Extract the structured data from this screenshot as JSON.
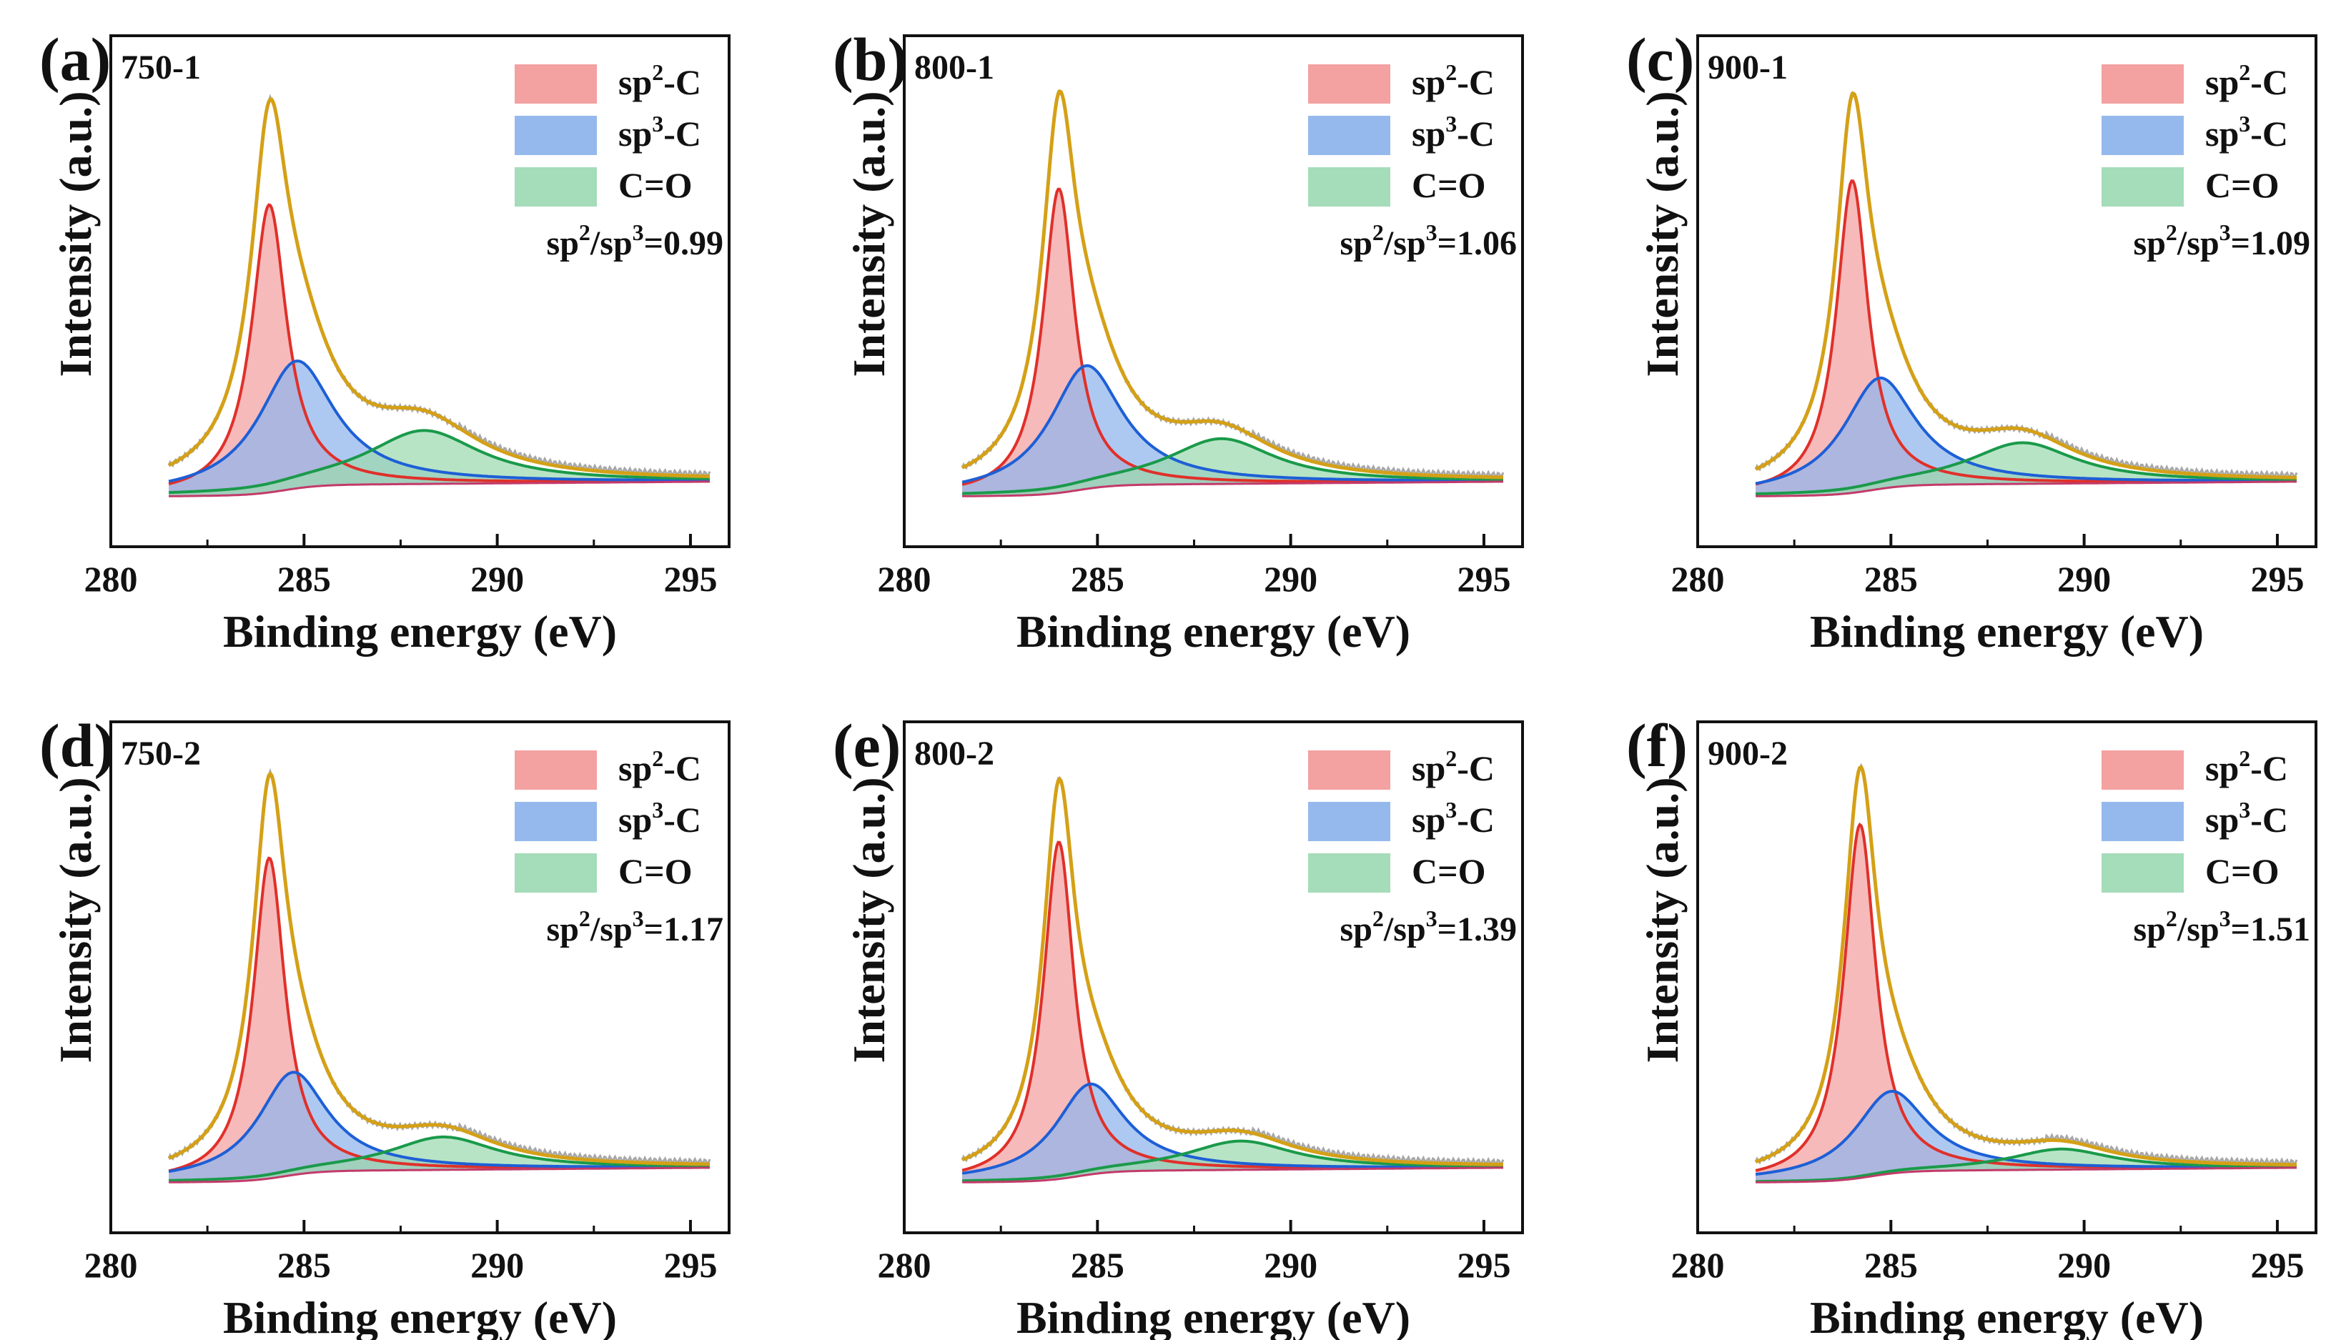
{
  "chart_data": [
    {
      "panel": "(a)",
      "sample": "750-1",
      "type": "area",
      "xlabel": "Binding energy (eV)",
      "ylabel": "Intensity (a.u.)",
      "xlim": [
        280,
        296
      ],
      "xticks": [
        280,
        285,
        290,
        295
      ],
      "legend": [
        {
          "name": "sp2-C",
          "base": "sp",
          "sup": "2",
          "tail": "-C",
          "color": "#f08a8a"
        },
        {
          "name": "sp3-C",
          "base": "sp",
          "sup": "3",
          "tail": "-C",
          "color": "#7aa8e8"
        },
        {
          "name": "C=O",
          "base": "C=O",
          "sup": "",
          "tail": "",
          "color": "#8fd3a8"
        }
      ],
      "ratio": {
        "a": "sp",
        "s1": "2",
        "b": "/sp",
        "s2": "3",
        "c": "=0.99"
      },
      "peaks": [
        {
          "name": "sp2-C",
          "center": 284.1,
          "height": 0.7,
          "width": 0.55
        },
        {
          "name": "sp3-C",
          "center": 284.8,
          "height": 0.31,
          "width": 1.2
        },
        {
          "name": "C=O",
          "center": 288.1,
          "height": 0.13,
          "width": 1.8
        }
      ]
    },
    {
      "panel": "(b)",
      "sample": "800-1",
      "type": "area",
      "xlabel": "Binding energy (eV)",
      "ylabel": "Intensity (a.u.)",
      "xlim": [
        280,
        296
      ],
      "xticks": [
        280,
        285,
        290,
        295
      ],
      "legend": [
        {
          "name": "sp2-C",
          "base": "sp",
          "sup": "2",
          "tail": "-C",
          "color": "#f08a8a"
        },
        {
          "name": "sp3-C",
          "base": "sp",
          "sup": "3",
          "tail": "-C",
          "color": "#7aa8e8"
        },
        {
          "name": "C=O",
          "base": "C=O",
          "sup": "",
          "tail": "",
          "color": "#8fd3a8"
        }
      ],
      "ratio": {
        "a": "sp",
        "s1": "2",
        "b": "/sp",
        "s2": "3",
        "c": "=1.06"
      },
      "peaks": [
        {
          "name": "sp2-C",
          "center": 284.0,
          "height": 0.74,
          "width": 0.5
        },
        {
          "name": "sp3-C",
          "center": 284.7,
          "height": 0.3,
          "width": 1.15
        },
        {
          "name": "C=O",
          "center": 288.2,
          "height": 0.11,
          "width": 1.7
        }
      ]
    },
    {
      "panel": "(c)",
      "sample": "900-1",
      "type": "area",
      "xlabel": "Binding energy (eV)",
      "ylabel": "Intensity (a.u.)",
      "xlim": [
        280,
        296
      ],
      "xticks": [
        280,
        285,
        290,
        295
      ],
      "legend": [
        {
          "name": "sp2-C",
          "base": "sp",
          "sup": "2",
          "tail": "-C",
          "color": "#f08a8a"
        },
        {
          "name": "sp3-C",
          "base": "sp",
          "sup": "3",
          "tail": "-C",
          "color": "#7aa8e8"
        },
        {
          "name": "C=O",
          "base": "C=O",
          "sup": "",
          "tail": "",
          "color": "#8fd3a8"
        }
      ],
      "ratio": {
        "a": "sp",
        "s1": "2",
        "b": "/sp",
        "s2": "3",
        "c": "=1.09"
      },
      "peaks": [
        {
          "name": "sp2-C",
          "center": 284.0,
          "height": 0.76,
          "width": 0.5
        },
        {
          "name": "sp3-C",
          "center": 284.7,
          "height": 0.27,
          "width": 1.15
        },
        {
          "name": "C=O",
          "center": 288.4,
          "height": 0.1,
          "width": 1.7
        }
      ]
    },
    {
      "panel": "(d)",
      "sample": "750-2",
      "type": "area",
      "xlabel": "Binding energy (eV)",
      "ylabel": "Intensity (a.u.)",
      "xlim": [
        280,
        296
      ],
      "xticks": [
        280,
        285,
        290,
        295
      ],
      "legend": [
        {
          "name": "sp2-C",
          "base": "sp",
          "sup": "2",
          "tail": "-C",
          "color": "#f08a8a"
        },
        {
          "name": "sp3-C",
          "base": "sp",
          "sup": "3",
          "tail": "-C",
          "color": "#7aa8e8"
        },
        {
          "name": "C=O",
          "base": "C=O",
          "sup": "",
          "tail": "",
          "color": "#8fd3a8"
        }
      ],
      "ratio": {
        "a": "sp",
        "s1": "2",
        "b": "/sp",
        "s2": "3",
        "c": "=1.17"
      },
      "peaks": [
        {
          "name": "sp2-C",
          "center": 284.1,
          "height": 0.78,
          "width": 0.5
        },
        {
          "name": "sp3-C",
          "center": 284.7,
          "height": 0.25,
          "width": 1.1
        },
        {
          "name": "C=O",
          "center": 288.6,
          "height": 0.08,
          "width": 1.7
        }
      ]
    },
    {
      "panel": "(e)",
      "sample": "800-2",
      "type": "area",
      "xlabel": "Binding energy (eV)",
      "ylabel": "Intensity (a.u.)",
      "xlim": [
        280,
        296
      ],
      "xticks": [
        280,
        285,
        290,
        295
      ],
      "legend": [
        {
          "name": "sp2-C",
          "base": "sp",
          "sup": "2",
          "tail": "-C",
          "color": "#f08a8a"
        },
        {
          "name": "sp3-C",
          "base": "sp",
          "sup": "3",
          "tail": "-C",
          "color": "#7aa8e8"
        },
        {
          "name": "C=O",
          "base": "C=O",
          "sup": "",
          "tail": "",
          "color": "#8fd3a8"
        }
      ],
      "ratio": {
        "a": "sp",
        "s1": "2",
        "b": "/sp",
        "s2": "3",
        "c": "=1.39"
      },
      "peaks": [
        {
          "name": "sp2-C",
          "center": 284.0,
          "height": 0.82,
          "width": 0.48
        },
        {
          "name": "sp3-C",
          "center": 284.8,
          "height": 0.22,
          "width": 1.1
        },
        {
          "name": "C=O",
          "center": 288.7,
          "height": 0.07,
          "width": 1.7
        }
      ]
    },
    {
      "panel": "(f)",
      "sample": "900-2",
      "type": "area",
      "xlabel": "Binding energy (eV)",
      "ylabel": "Intensity (a.u.)",
      "xlim": [
        280,
        296
      ],
      "xticks": [
        280,
        285,
        290,
        295
      ],
      "legend": [
        {
          "name": "sp2-C",
          "base": "sp",
          "sup": "2",
          "tail": "-C",
          "color": "#f08a8a"
        },
        {
          "name": "sp3-C",
          "base": "sp",
          "sup": "3",
          "tail": "-C",
          "color": "#7aa8e8"
        },
        {
          "name": "C=O",
          "base": "C=O",
          "sup": "",
          "tail": "",
          "color": "#8fd3a8"
        }
      ],
      "ratio": {
        "a": "sp",
        "s1": "2",
        "b": "/sp",
        "s2": "3",
        "c": "=1.51"
      },
      "peaks": [
        {
          "name": "sp2-C",
          "center": 284.2,
          "height": 0.86,
          "width": 0.5
        },
        {
          "name": "sp3-C",
          "center": 285.0,
          "height": 0.2,
          "width": 1.15
        },
        {
          "name": "C=O",
          "center": 289.4,
          "height": 0.05,
          "width": 1.6
        }
      ]
    }
  ],
  "colors": {
    "sp2_line": "#e0302a",
    "sp3_line": "#1d5fd6",
    "co_line": "#1a9a4a",
    "envelope": "#d4a017",
    "raw": "#a8a8a8",
    "background": "#c23a6a"
  }
}
